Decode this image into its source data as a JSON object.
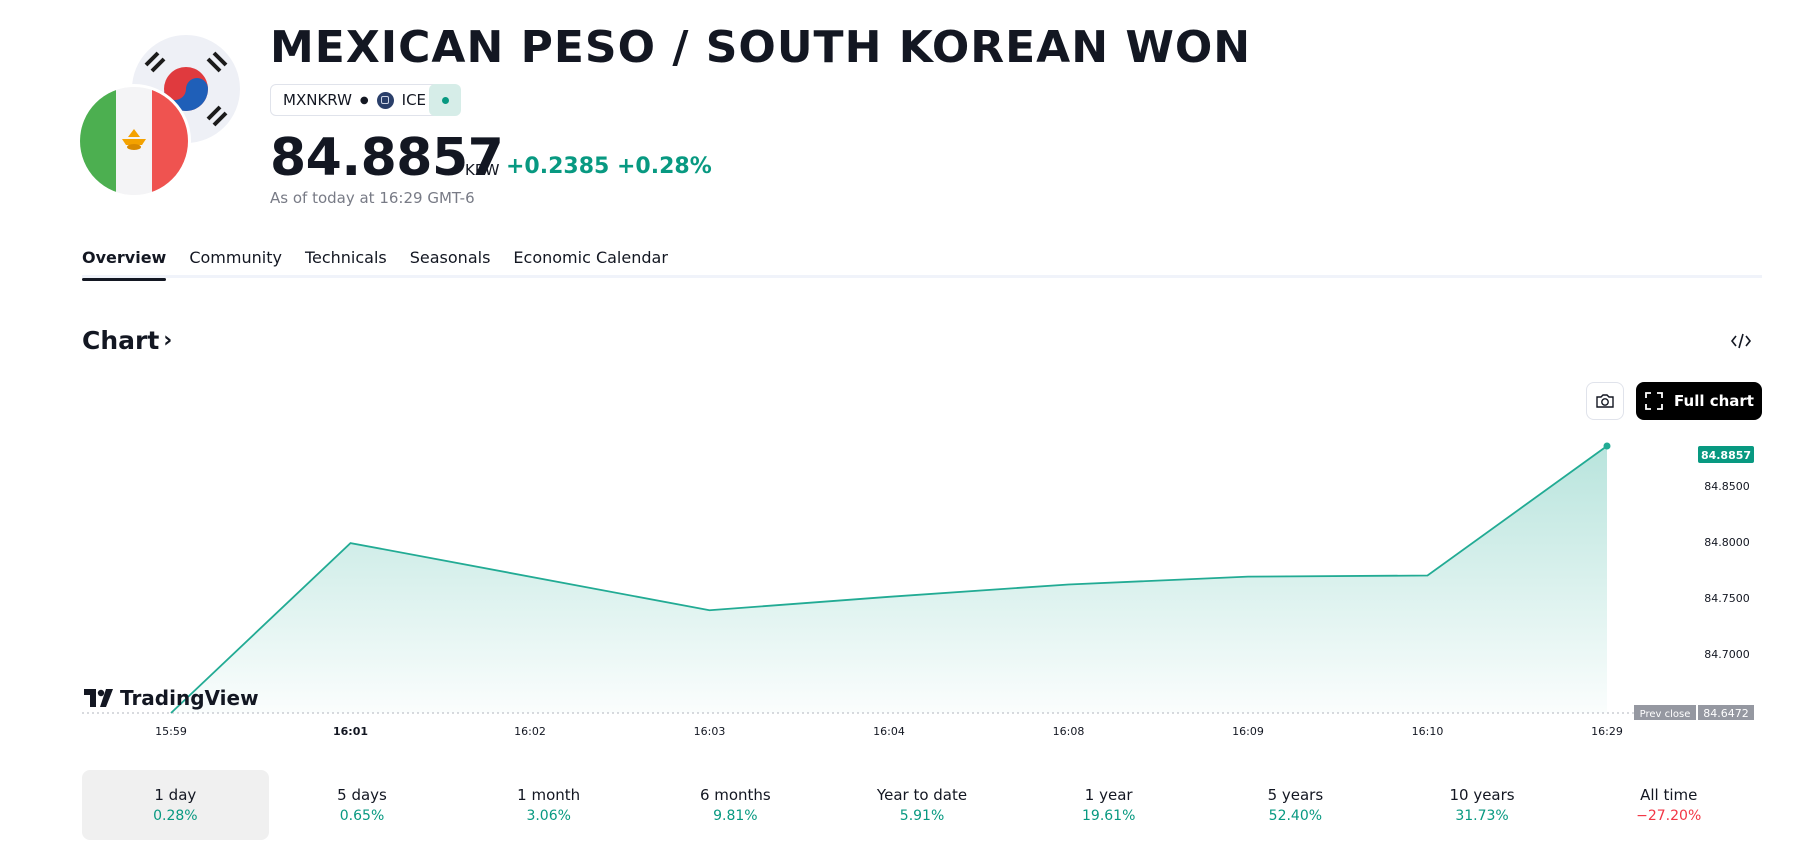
{
  "header": {
    "title": "MEXICAN PESO / SOUTH KOREAN WON",
    "symbol": "MXNKRW",
    "exchange": "ICE",
    "price": "84.8857",
    "currency": "KRW",
    "change": "+0.2385 +0.28%",
    "as_of": "As of today at 16:29 GMT-6"
  },
  "tabs": [
    {
      "label": "Overview"
    },
    {
      "label": "Community"
    },
    {
      "label": "Technicals"
    },
    {
      "label": "Seasonals"
    },
    {
      "label": "Economic Calendar"
    }
  ],
  "chart_section": {
    "title": "Chart",
    "full_chart_label": "Full chart",
    "brand": "TradingView"
  },
  "chart_data": {
    "type": "area",
    "x": [
      "15:59",
      "16:01",
      "16:03",
      "16:04",
      "16:08",
      "16:09",
      "16:10",
      "16:29"
    ],
    "x_labels": [
      "15:59",
      "16:01",
      "16:02",
      "16:03",
      "16:04",
      "16:08",
      "16:09",
      "16:10",
      "16:29"
    ],
    "values": [
      84.6472,
      84.799,
      84.739,
      84.751,
      84.762,
      84.769,
      84.77,
      84.8857
    ],
    "ylim": [
      84.6472,
      84.8857
    ],
    "y_ticks": [
      "84.8500",
      "84.8000",
      "84.7500",
      "84.7000"
    ],
    "last_price_label": "84.8857",
    "prev_close_label": "Prev close",
    "prev_close_value": "84.6472",
    "colors": {
      "line": "#22ab94",
      "fill": "#22ab94",
      "badge": "#089981",
      "prev_close_bg": "#9598a1"
    },
    "grid": false,
    "legend": "none"
  },
  "periods": [
    {
      "label": "1 day",
      "value": "0.28%",
      "positive": true
    },
    {
      "label": "5 days",
      "value": "0.65%",
      "positive": true
    },
    {
      "label": "1 month",
      "value": "3.06%",
      "positive": true
    },
    {
      "label": "6 months",
      "value": "9.81%",
      "positive": true
    },
    {
      "label": "Year to date",
      "value": "5.91%",
      "positive": true
    },
    {
      "label": "1 year",
      "value": "19.61%",
      "positive": true
    },
    {
      "label": "5 years",
      "value": "52.40%",
      "positive": true
    },
    {
      "label": "10 years",
      "value": "31.73%",
      "positive": true
    },
    {
      "label": "All time",
      "value": "−27.20%",
      "positive": false
    }
  ],
  "colors": {
    "accent_green": "#089981",
    "accent_red": "#f23645",
    "text": "#131722",
    "muted": "#787b86"
  },
  "icons": {
    "snapshot": "camera-icon",
    "fullscreen": "fullscreen-icon",
    "embed": "code-icon",
    "chevron": "chevron-right-icon"
  }
}
